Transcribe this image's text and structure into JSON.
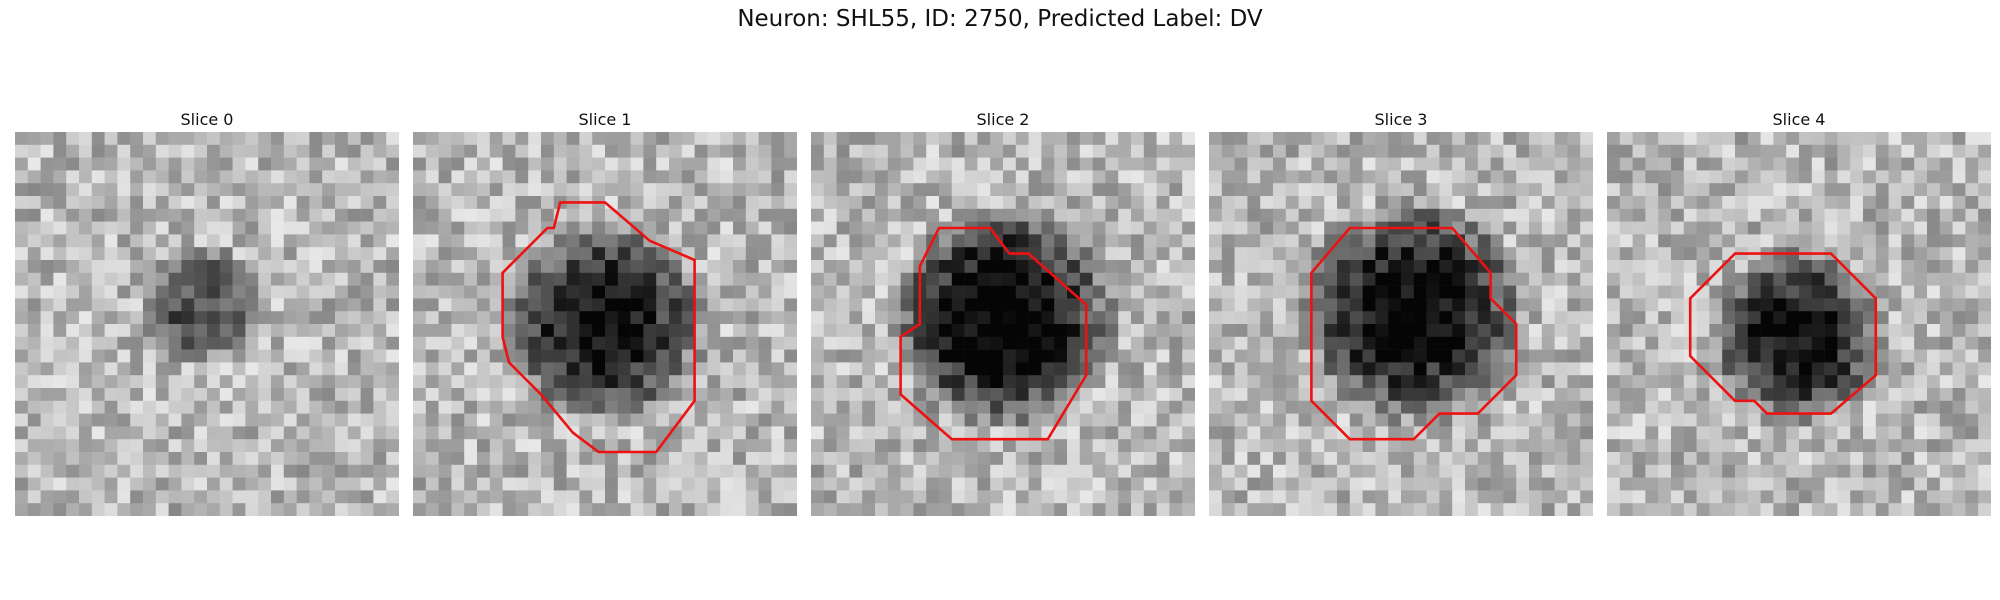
{
  "figure": {
    "title": "Neuron: SHL55, ID: 2750, Predicted Label: DV"
  },
  "outline_color": "#ee1111",
  "panels": [
    {
      "title": "Slice 0",
      "seed": 11,
      "blob_strength": 0.45,
      "has_outline": false
    },
    {
      "title": "Slice 1",
      "seed": 23,
      "blob_strength": 0.75,
      "has_outline": true
    },
    {
      "title": "Slice 2",
      "seed": 37,
      "blob_strength": 0.85,
      "has_outline": true
    },
    {
      "title": "Slice 3",
      "seed": 53,
      "blob_strength": 0.8,
      "has_outline": true
    },
    {
      "title": "Slice 4",
      "seed": 71,
      "blob_strength": 0.75,
      "has_outline": true
    }
  ]
}
